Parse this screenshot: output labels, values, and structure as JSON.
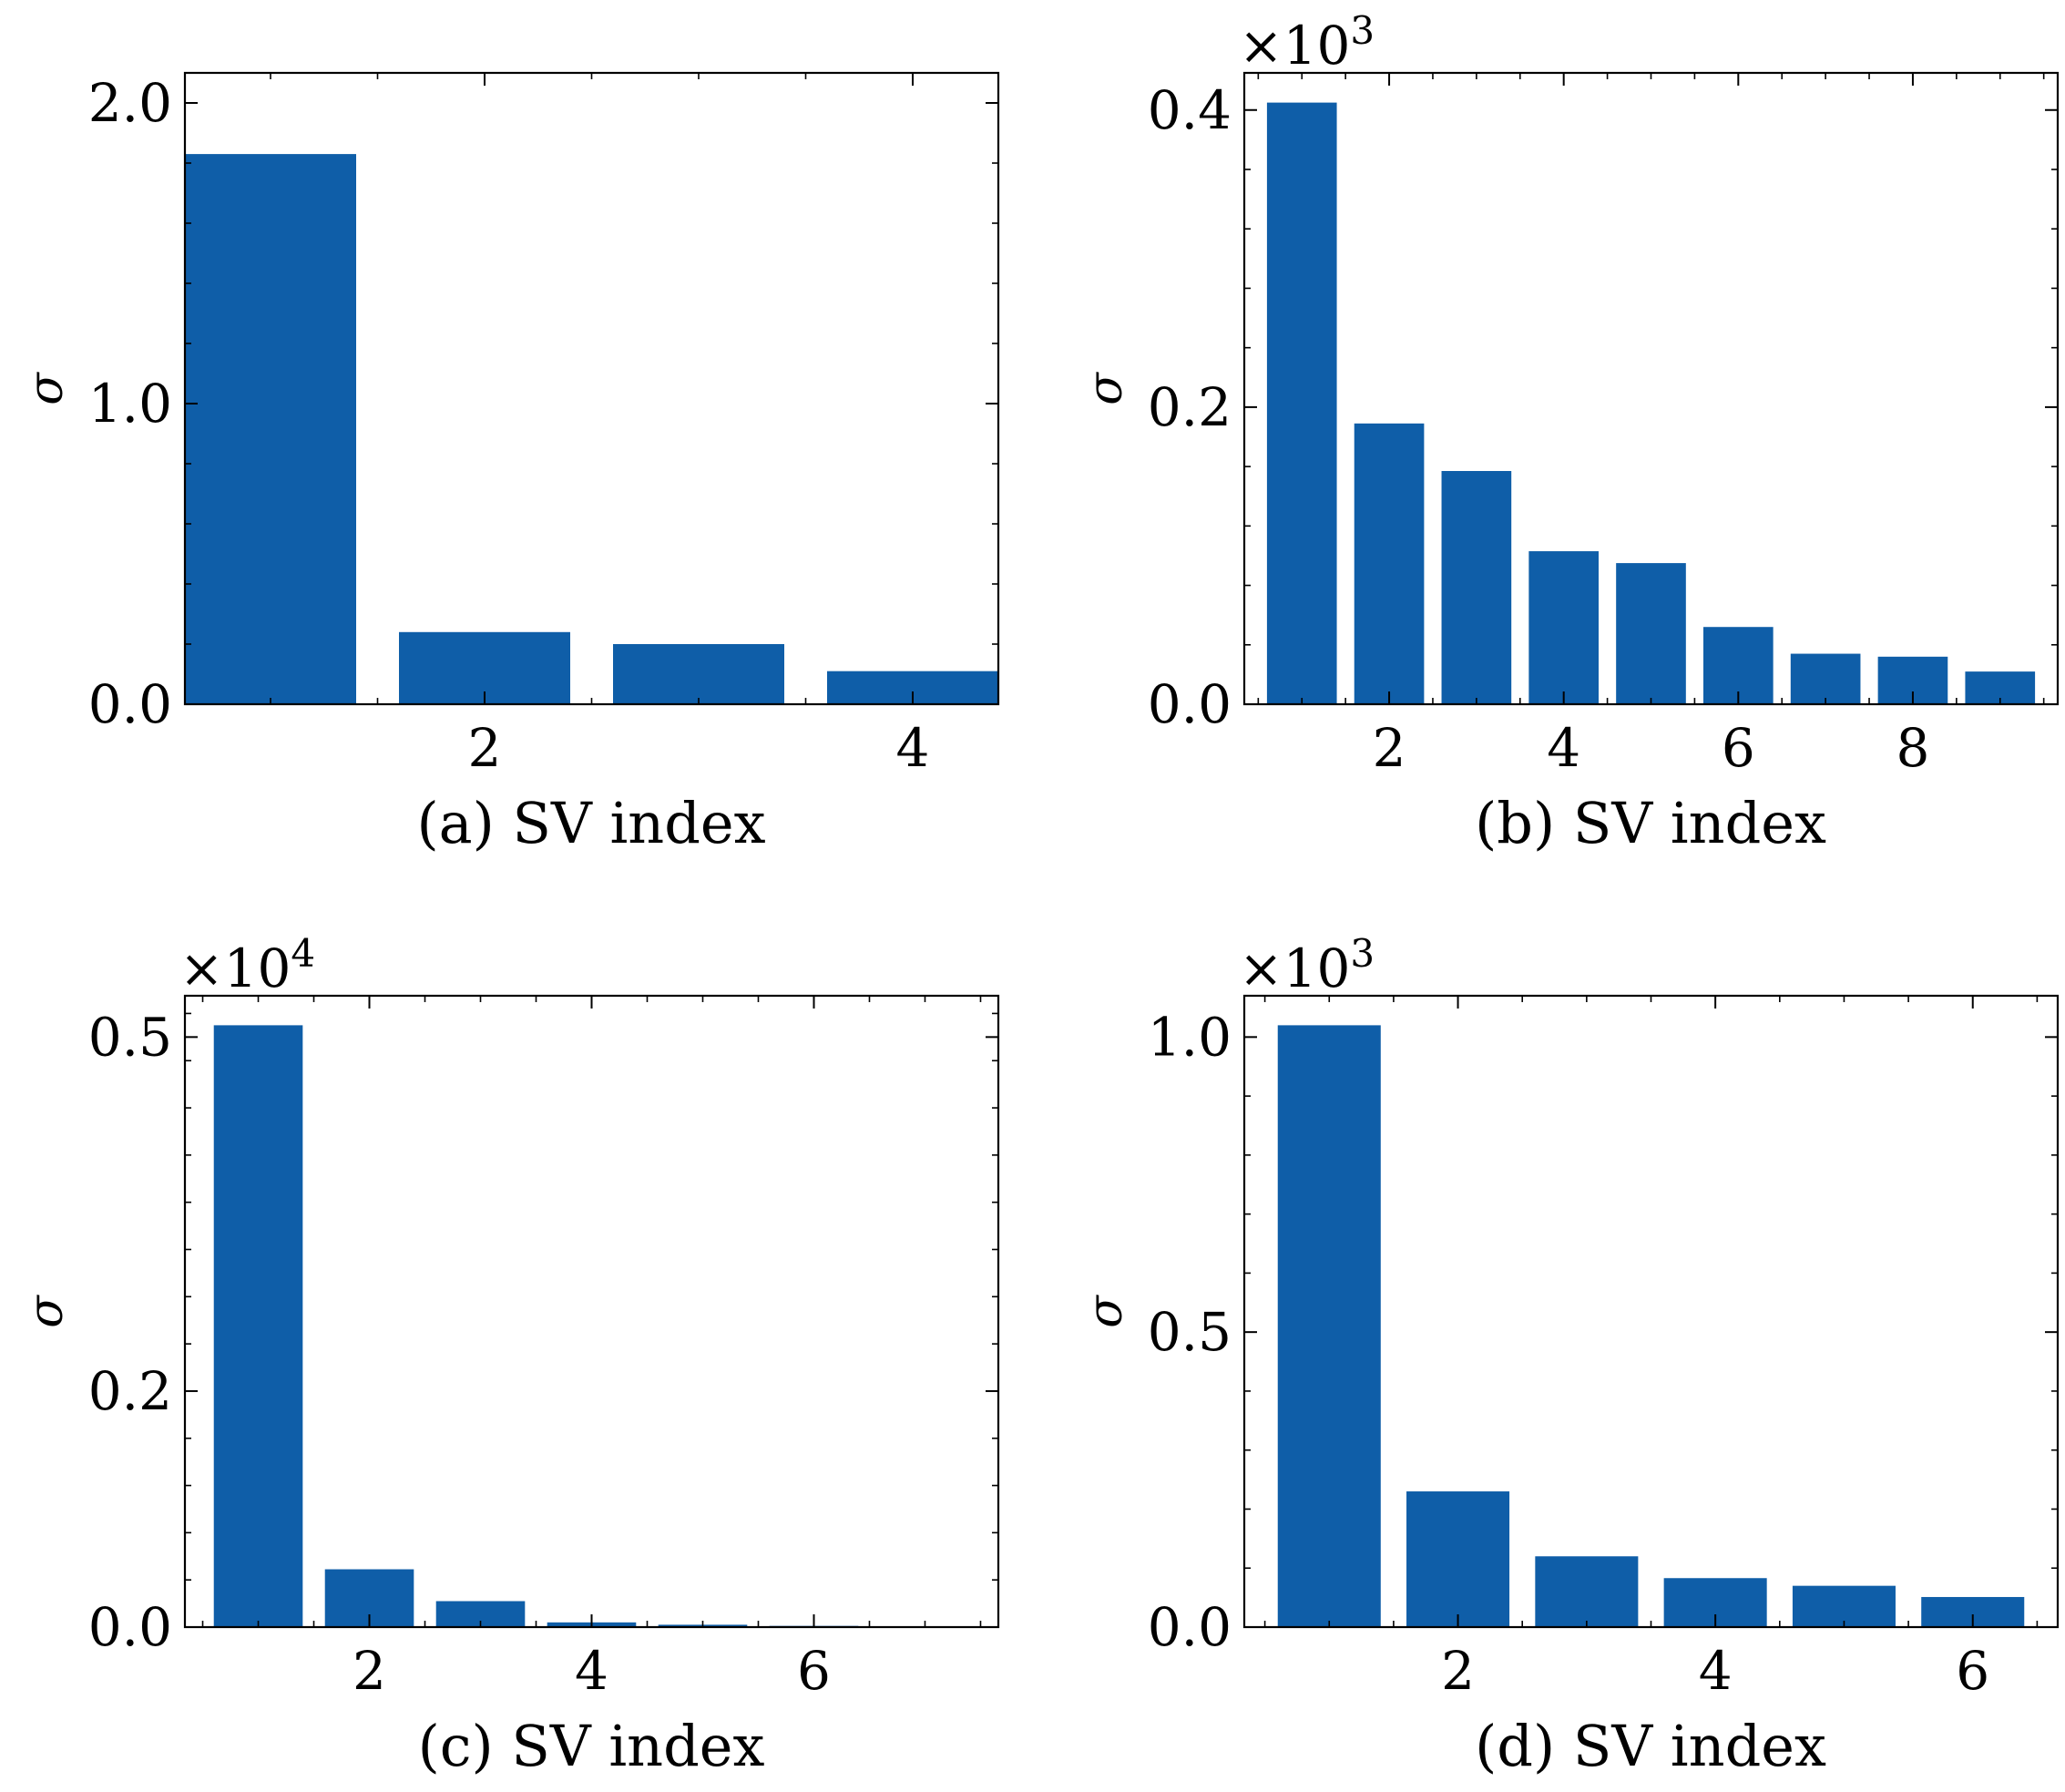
{
  "colors": {
    "bar": "#0f5ea8",
    "axis": "#000000"
  },
  "chart_data": [
    {
      "id": "a",
      "type": "bar",
      "xlabel": "(a) SV index",
      "ylabel": "σ",
      "multiplier": "",
      "x": [
        1,
        2,
        3,
        4
      ],
      "values": [
        1.83,
        0.24,
        0.2,
        0.11
      ],
      "xlim": [
        0.6,
        4.4
      ],
      "ylim": [
        0.0,
        2.1
      ],
      "xticks": [
        2,
        4
      ],
      "xtick_labels": [
        "2",
        "4"
      ],
      "yticks": [
        0.0,
        1.0,
        2.0
      ],
      "ytick_labels": [
        "0.0",
        "1.0",
        "2.0"
      ]
    },
    {
      "id": "b",
      "type": "bar",
      "xlabel": "(b) SV index",
      "ylabel": "σ",
      "multiplier": "×10^3",
      "multiplier_base": "×10",
      "multiplier_exp": "3",
      "x": [
        1,
        2,
        3,
        4,
        5,
        6,
        7,
        8,
        9
      ],
      "values": [
        0.405,
        0.189,
        0.157,
        0.103,
        0.095,
        0.052,
        0.034,
        0.032,
        0.022
      ],
      "xlim": [
        0.34,
        9.66
      ],
      "ylim": [
        0.0,
        0.425
      ],
      "xticks": [
        2,
        4,
        6,
        8
      ],
      "xtick_labels": [
        "2",
        "4",
        "6",
        "8"
      ],
      "yticks": [
        0.0,
        0.2,
        0.4
      ],
      "ytick_labels": [
        "0.0",
        "0.2",
        "0.4"
      ]
    },
    {
      "id": "c",
      "type": "bar",
      "xlabel": "(c) SV index",
      "ylabel": "σ",
      "multiplier": "×10^4",
      "multiplier_base": "×10",
      "multiplier_exp": "4",
      "x": [
        1,
        2,
        3,
        4,
        5,
        6
      ],
      "values": [
        0.51,
        0.049,
        0.022,
        0.004,
        0.002,
        0.001
      ],
      "xlim": [
        0.34,
        7.66
      ],
      "ylim": [
        0.0,
        0.535
      ],
      "xticks": [
        2,
        4,
        6
      ],
      "xtick_labels": [
        "2",
        "4",
        "6"
      ],
      "yticks": [
        0.0,
        0.2,
        0.5
      ],
      "ytick_labels": [
        "0.0",
        "0.2",
        "0.5"
      ]
    },
    {
      "id": "d",
      "type": "bar",
      "xlabel": "(d) SV index",
      "ylabel": "σ",
      "multiplier": "×10^3",
      "multiplier_base": "×10",
      "multiplier_exp": "3",
      "x": [
        1,
        2,
        3,
        4,
        5,
        6
      ],
      "values": [
        1.02,
        0.23,
        0.12,
        0.083,
        0.07,
        0.051
      ],
      "xlim": [
        0.34,
        6.66
      ],
      "ylim": [
        0.0,
        1.07
      ],
      "xticks": [
        2,
        4,
        6
      ],
      "xtick_labels": [
        "2",
        "4",
        "6"
      ],
      "yticks": [
        0.0,
        0.5,
        1.0
      ],
      "ytick_labels": [
        "0.0",
        "0.5",
        "1.0"
      ]
    }
  ]
}
